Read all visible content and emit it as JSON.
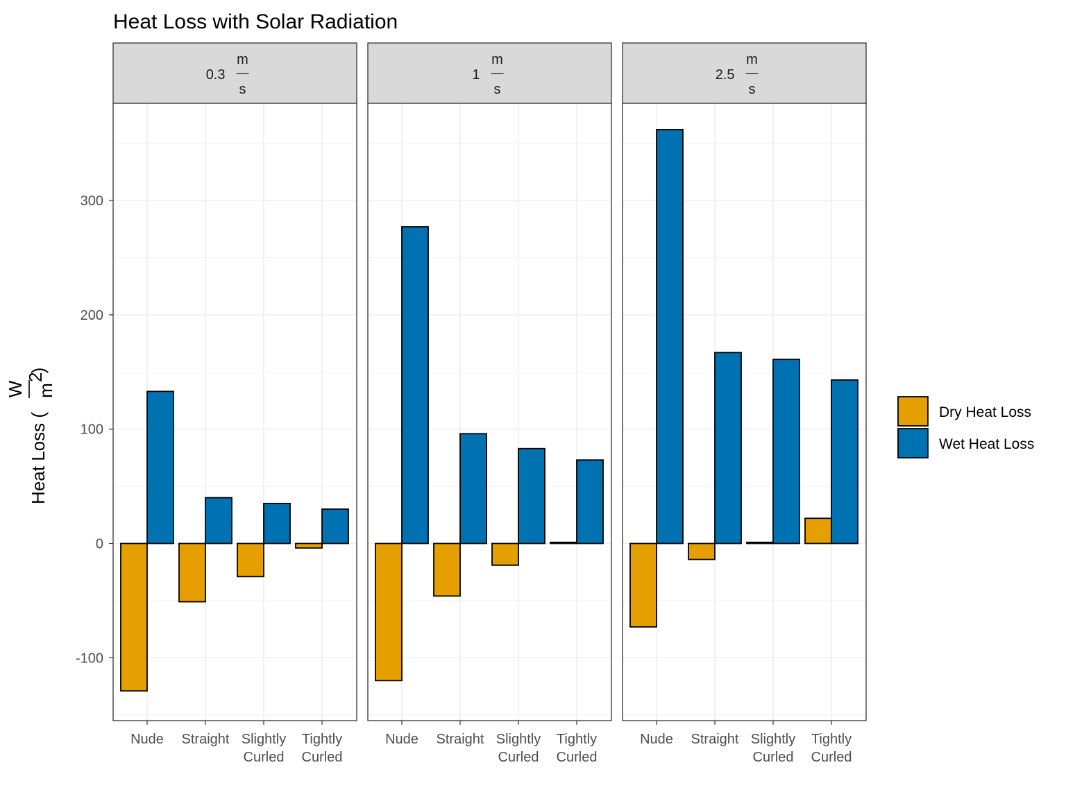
{
  "chart_data": {
    "type": "bar",
    "title": "Heat Loss with Solar Radiation",
    "ylabel": {
      "text": "Heat Loss (",
      "unit_numerator": "W",
      "unit_denominator": "m",
      "unit_exponent": "2",
      "close": ")"
    },
    "ylim": [
      -155,
      385
    ],
    "yticks": [
      -100,
      0,
      100,
      200,
      300
    ],
    "categories": [
      [
        "Nude"
      ],
      [
        "Straight"
      ],
      [
        "Slightly",
        "Curled"
      ],
      [
        "Tightly",
        "Curled"
      ]
    ],
    "facets": [
      {
        "label": "0.3",
        "unit_numerator": "m",
        "unit_denominator": "s",
        "series": [
          {
            "name": "Dry Heat Loss",
            "values": [
              -129,
              -51,
              -29,
              -4
            ]
          },
          {
            "name": "Wet Heat Loss",
            "values": [
              133,
              40,
              35,
              30
            ]
          }
        ]
      },
      {
        "label": "1",
        "unit_numerator": "m",
        "unit_denominator": "s",
        "series": [
          {
            "name": "Dry Heat Loss",
            "values": [
              -120,
              -46,
              -19,
              1
            ]
          },
          {
            "name": "Wet Heat Loss",
            "values": [
              277,
              96,
              83,
              73
            ]
          }
        ]
      },
      {
        "label": "2.5",
        "unit_numerator": "m",
        "unit_denominator": "s",
        "series": [
          {
            "name": "Dry Heat Loss",
            "values": [
              -73,
              -14,
              1,
              22
            ]
          },
          {
            "name": "Wet Heat Loss",
            "values": [
              362,
              167,
              161,
              143
            ]
          }
        ]
      }
    ],
    "legend": {
      "placement": "right",
      "entries": [
        {
          "name": "Dry Heat Loss",
          "color": "#E69F00"
        },
        {
          "name": "Wet Heat Loss",
          "color": "#0072B2"
        }
      ]
    },
    "grid": true
  }
}
